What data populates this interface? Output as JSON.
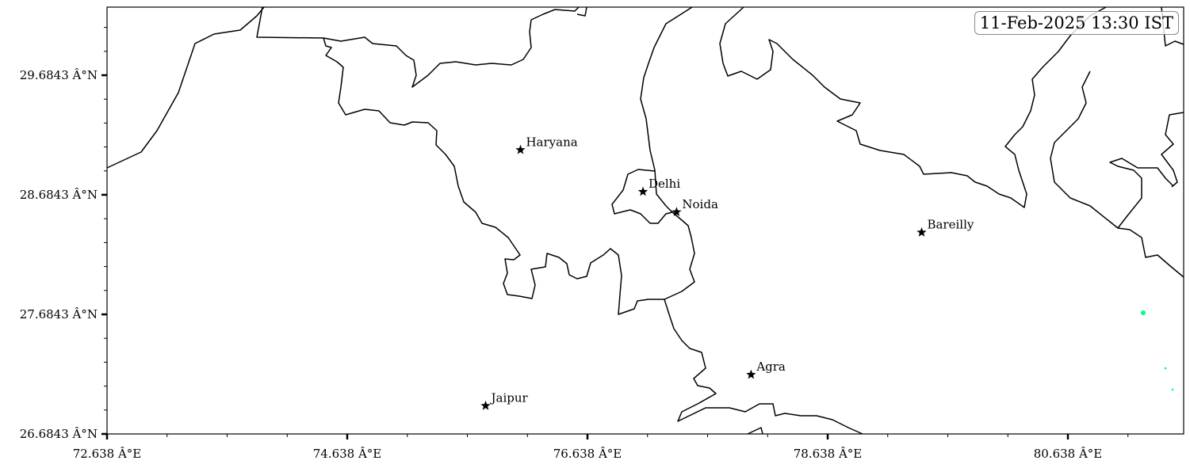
{
  "timestamp": "11-Feb-2025 13:30 IST",
  "axes": {
    "x_ticks": [
      "72.638 Â°E",
      "74.638 Â°E",
      "76.638 Â°E",
      "78.638 Â°E",
      "80.638 Â°E"
    ],
    "x_tick_values": [
      72.638,
      74.638,
      76.638,
      78.638,
      80.638
    ],
    "y_ticks": [
      "26.6843 Â°N",
      "27.6843 Â°N",
      "28.6843 Â°N",
      "29.6843 Â°N"
    ],
    "y_tick_values": [
      26.6843,
      27.6843,
      28.6843,
      29.6843
    ],
    "lon_range": [
      72.638,
      81.6
    ],
    "lat_range": [
      26.6843,
      30.25
    ]
  },
  "cities": [
    {
      "name": "Haryana",
      "lon": 76.08,
      "lat": 29.06
    },
    {
      "name": "Delhi",
      "lon": 77.1,
      "lat": 28.71
    },
    {
      "name": "Noida",
      "lon": 77.38,
      "lat": 28.54
    },
    {
      "name": "Bareilly",
      "lon": 79.42,
      "lat": 28.37
    },
    {
      "name": "Agra",
      "lon": 78.0,
      "lat": 27.18
    },
    {
      "name": "Jaipur",
      "lon": 75.79,
      "lat": 26.92
    }
  ],
  "marker_icon": "star-icon",
  "colors": {
    "boundary": "#000000",
    "fire_points": [
      "#00ff80",
      "#00e5e5"
    ]
  }
}
